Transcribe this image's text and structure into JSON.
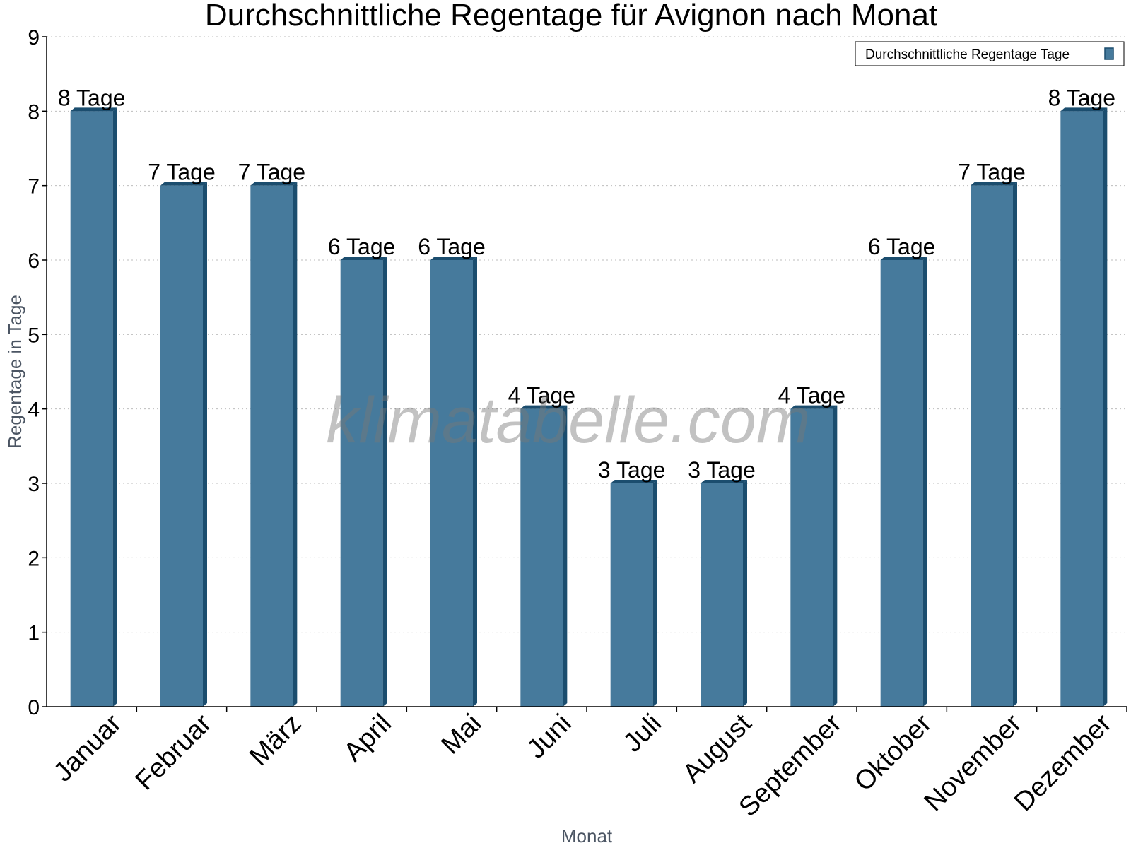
{
  "chart_data": {
    "type": "bar",
    "title": "Durchschnittliche Regentage für Avignon nach Monat",
    "xlabel": "Monat",
    "ylabel": "Regentage in Tage",
    "ylim": [
      0,
      9
    ],
    "yticks": [
      0,
      1,
      2,
      3,
      4,
      5,
      6,
      7,
      8,
      9
    ],
    "grid": true,
    "legend_position": "top-right",
    "categories": [
      "Januar",
      "Februar",
      "März",
      "April",
      "Mai",
      "Juni",
      "Juli",
      "August",
      "September",
      "Oktober",
      "November",
      "Dezember"
    ],
    "series": [
      {
        "name": "Durchschnittliche Regentage Tage",
        "values": [
          8,
          7,
          7,
          6,
          6,
          4,
          3,
          3,
          4,
          6,
          7,
          8
        ],
        "color": "#467a9c",
        "side_color": "#1b4d6e"
      }
    ],
    "data_labels": [
      "8 Tage",
      "7 Tage",
      "7 Tage",
      "6 Tage",
      "6 Tage",
      "4 Tage",
      "3 Tage",
      "3 Tage",
      "4 Tage",
      "6 Tage",
      "7 Tage",
      "8 Tage"
    ],
    "watermark": "klimatabelle.com"
  }
}
